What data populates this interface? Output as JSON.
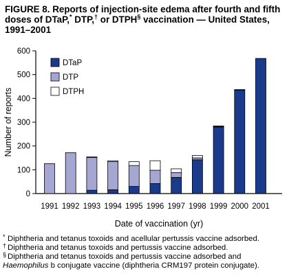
{
  "figure": {
    "title_part1": "FIGURE 8. Reports of injection-site edema after fourth and fifth doses of DTaP,",
    "mark1": "*",
    "title_part2": " DTP,",
    "mark2": "†",
    "title_part3": " or DTPH",
    "mark3": "§",
    "title_part4": " vaccination — United States, 1991–2001"
  },
  "chart_data": {
    "type": "bar",
    "stacked": true,
    "title": "",
    "xlabel": "Date of vaccination (yr)",
    "ylabel": "Number of reports",
    "categories": [
      "1991",
      "1992",
      "1993",
      "1994",
      "1995",
      "1996",
      "1997",
      "1998",
      "1999",
      "2000",
      "2001"
    ],
    "series": [
      {
        "name": "DTaP",
        "color": "#1a3a8c",
        "values": [
          0,
          0,
          14,
          16,
          30,
          42,
          68,
          142,
          280,
          435,
          568
        ]
      },
      {
        "name": "DTP",
        "color": "#a6a6d2",
        "values": [
          126,
          172,
          138,
          118,
          88,
          56,
          20,
          8,
          2,
          0,
          0
        ]
      },
      {
        "name": "DTPH",
        "color": "#ffffff",
        "values": [
          0,
          0,
          2,
          4,
          16,
          40,
          16,
          10,
          2,
          2,
          0
        ]
      }
    ],
    "ylim": [
      0,
      600
    ],
    "yticks": [
      0,
      100,
      200,
      300,
      400,
      500,
      600
    ],
    "grid": false,
    "legend_position": "top-left"
  },
  "footnotes": {
    "dtap": {
      "marker": "*",
      "text": "Diphtheria and tetanus toxoids and acellular pertussis vaccine adsorbed."
    },
    "dtp": {
      "marker": "†",
      "text": "Diphtheria and tetanus toxoids and pertussis vaccine adsorbed."
    },
    "dtph": {
      "marker": "§",
      "text": "Diphtheria and tetanus toxoids and pertussis vaccine adsorbed and",
      "italic": "Haemophilus",
      "rest": " b conjugate vaccine (diphtheria CRM197 protein conjugate)."
    }
  }
}
